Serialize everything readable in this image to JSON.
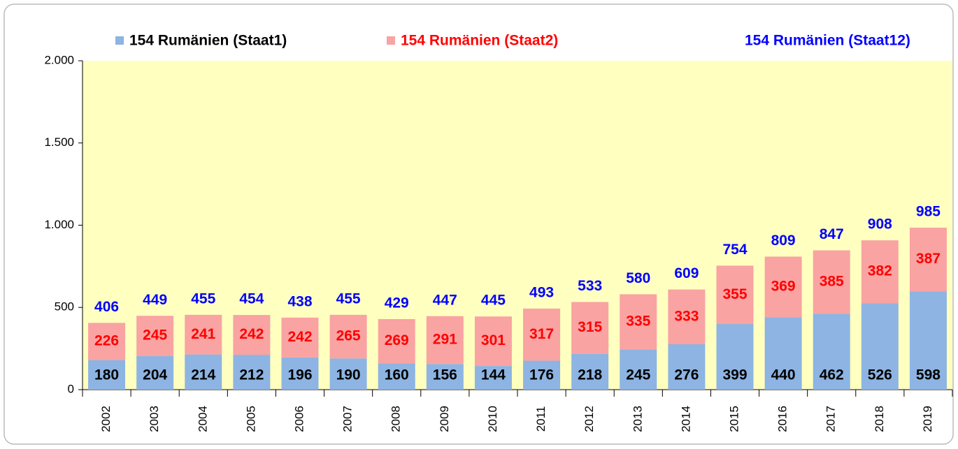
{
  "chart_data": {
    "type": "stacked_bar",
    "categories": [
      "2002",
      "2003",
      "2004",
      "2005",
      "2006",
      "2007",
      "2008",
      "2009",
      "2010",
      "2011",
      "2012",
      "2013",
      "2014",
      "2015",
      "2016",
      "2017",
      "2018",
      "2019"
    ],
    "series": [
      {
        "name": "154 Rumänien (Staat1)",
        "color": "#8db4e2",
        "label_color": "#000000",
        "values": [
          180,
          204,
          214,
          212,
          196,
          190,
          160,
          156,
          144,
          176,
          218,
          245,
          276,
          399,
          440,
          462,
          526,
          598
        ]
      },
      {
        "name": "154 Rumänien (Staat2)",
        "color": "#f9a3a3",
        "label_color": "#ff0000",
        "values": [
          226,
          245,
          241,
          242,
          242,
          265,
          269,
          291,
          301,
          317,
          315,
          335,
          333,
          355,
          369,
          385,
          382,
          387
        ]
      },
      {
        "name": "154 Rumänien (Staat12)",
        "color": "#0000ff",
        "label_color": "#0000ff",
        "type": "label",
        "values": [
          406,
          449,
          455,
          454,
          438,
          455,
          429,
          447,
          445,
          493,
          533,
          580,
          609,
          754,
          809,
          847,
          908,
          985
        ]
      }
    ],
    "ylim": [
      0,
      2000
    ],
    "yticks": [
      0,
      500,
      {
        "value": 1000,
        "label": "1.000"
      },
      {
        "value": 1500,
        "label": "1.500"
      },
      {
        "value": 2000,
        "label": "2.000"
      }
    ],
    "plot_background": "#ffffc0"
  }
}
